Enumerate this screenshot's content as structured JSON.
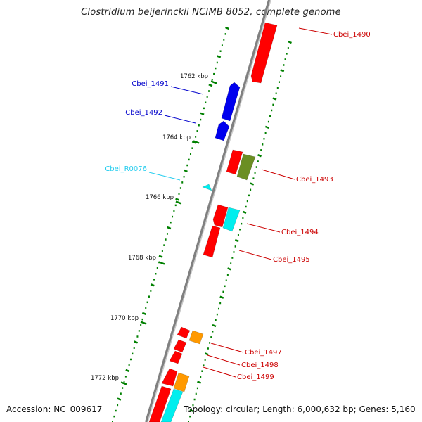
{
  "title": "Clostridium beijerinckii NCIMB 8052, complete genome",
  "footer": {
    "accession": "Accession: NC_009617",
    "summary": "Topology: circular; Length: 6,000,632 bp; Genes: 5,160"
  },
  "colors": {
    "red": "#ff0000",
    "blue": "#0000ee",
    "cyan": "#00eeee",
    "olive": "#6b8e23",
    "orange": "#ff9900",
    "label_red": "#cc0000",
    "label_blue": "#0000cc",
    "label_cyan": "#22ccee",
    "tick_green": "#008000",
    "backbone": "#808080"
  },
  "kbp_ticks": [
    {
      "label": "1762 kbp",
      "kbp": 1762
    },
    {
      "label": "1764 kbp",
      "kbp": 1764
    },
    {
      "label": "1766 kbp",
      "kbp": 1766
    },
    {
      "label": "1768 kbp",
      "kbp": 1768
    },
    {
      "label": "1770 kbp",
      "kbp": 1770
    },
    {
      "label": "1772 kbp",
      "kbp": 1772
    }
  ],
  "genes": [
    {
      "name": "Cbei_1490",
      "color": "red"
    },
    {
      "name": "Cbei_1491",
      "color": "blue"
    },
    {
      "name": "Cbei_1492",
      "color": "blue"
    },
    {
      "name": "Cbei_R0076",
      "color": "cyan"
    },
    {
      "name": "Cbei_1493",
      "color": "red"
    },
    {
      "name": "Cbei_1494",
      "color": "red"
    },
    {
      "name": "Cbei_1495",
      "color": "red"
    },
    {
      "name": "Cbei_1497",
      "color": "red"
    },
    {
      "name": "Cbei_1498",
      "color": "red"
    },
    {
      "name": "Cbei_1499",
      "color": "red"
    }
  ]
}
